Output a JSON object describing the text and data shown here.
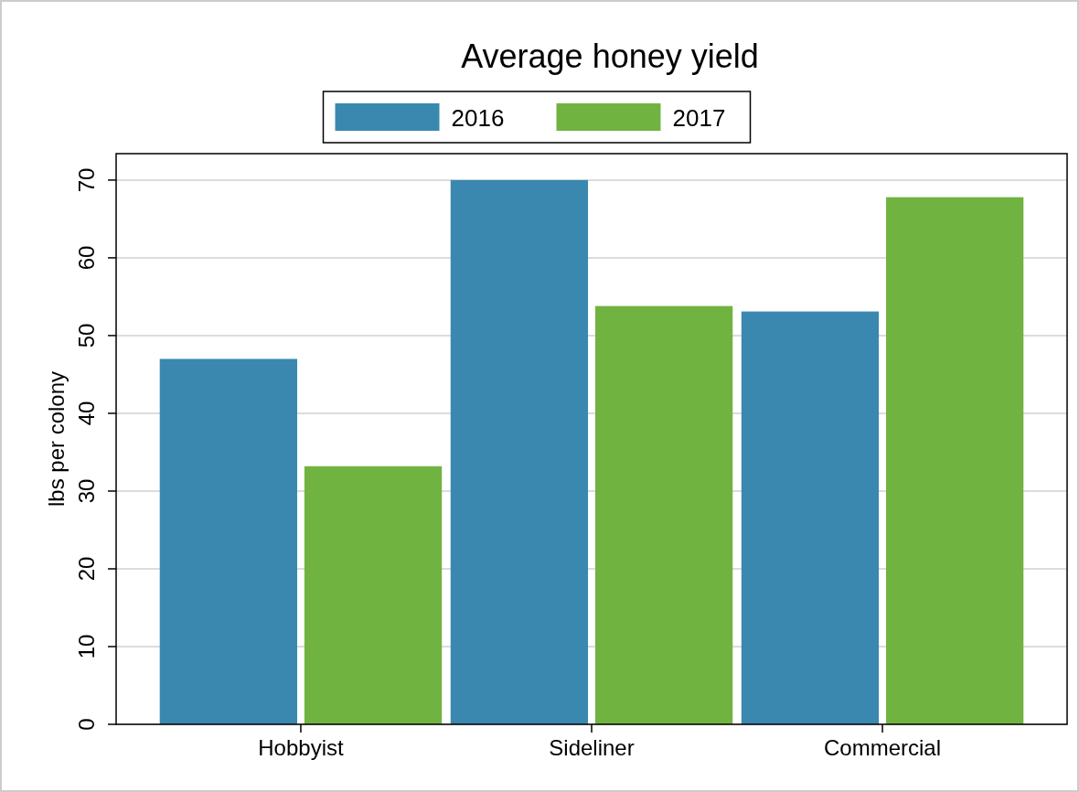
{
  "chart_data": {
    "type": "bar",
    "title": "Average honey yield",
    "ylabel": "lbs per colony",
    "categories": [
      "Hobbyist",
      "Sideliner",
      "Commercial"
    ],
    "series": [
      {
        "name": "2016",
        "color": "#3a88b0",
        "values": [
          47,
          70,
          53.1
        ]
      },
      {
        "name": "2017",
        "color": "#70b341",
        "values": [
          33.2,
          53.8,
          67.8
        ]
      }
    ],
    "ylim": [
      0,
      73.4
    ],
    "yticks": [
      0,
      10,
      20,
      30,
      40,
      50,
      60,
      70
    ],
    "grid": "y",
    "legend": "top"
  }
}
